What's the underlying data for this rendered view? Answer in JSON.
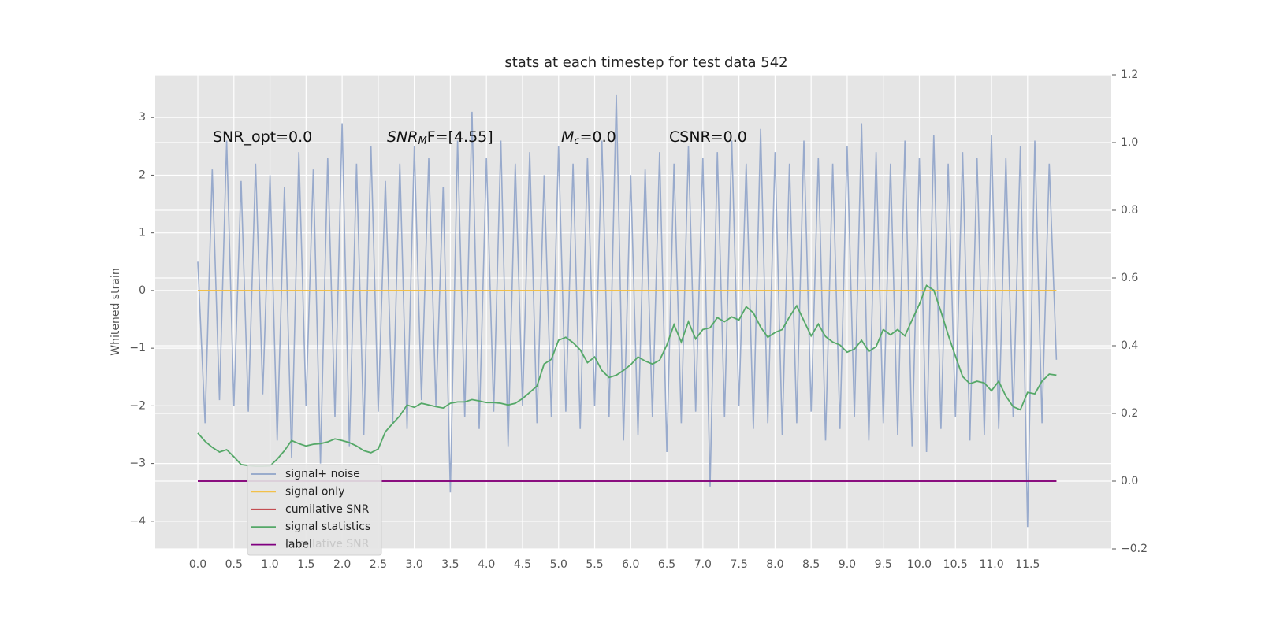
{
  "chart_data": {
    "type": "line",
    "title": "stats at each timestep for test data 542",
    "ylabel": "Whitened strain",
    "annotations": [
      {
        "parts": [
          "SNR_opt=0.0"
        ]
      },
      {
        "parts": [
          "SNR",
          "M",
          "F=[4.55]"
        ]
      },
      {
        "parts": [
          "M",
          "c",
          "=0.0"
        ]
      },
      {
        "parts": [
          "CSNR=0.0"
        ]
      }
    ],
    "legend_ghost_text": "cumilative SNR",
    "xlim": [
      -0.59,
      12.66
    ],
    "ylim": [
      -4.48,
      3.74
    ],
    "y2lim": [
      -0.2,
      1.2
    ],
    "grid": true,
    "legend": "lower left",
    "xticks": [
      {
        "value": 0,
        "label": "0.0"
      },
      0.5,
      {
        "value": 1,
        "label": "1.0"
      },
      1.5,
      {
        "value": 2,
        "label": "2.0"
      },
      2.5,
      {
        "value": 3,
        "label": "3.0"
      },
      3.5,
      {
        "value": 4,
        "label": "4.0"
      },
      4.5,
      {
        "value": 5,
        "label": "5.0"
      },
      5.5,
      {
        "value": 6,
        "label": "6.0"
      },
      6.5,
      {
        "value": 7,
        "label": "7.0"
      },
      7.5,
      {
        "value": 8,
        "label": "8.0"
      },
      8.5,
      {
        "value": 9,
        "label": "9.0"
      },
      9.5,
      {
        "value": 10,
        "label": "10.0"
      },
      10.5,
      {
        "value": 11,
        "label": "11.0"
      },
      11.5
    ],
    "yticks": [
      {
        "value": -4,
        "label": "−4"
      },
      {
        "value": -3,
        "label": "−3"
      },
      {
        "value": -2,
        "label": "−2"
      },
      {
        "value": -1,
        "label": "−1"
      },
      0,
      1,
      2,
      3
    ],
    "y2ticks": [
      {
        "value": -0.2,
        "label": "−0.2"
      },
      {
        "value": 0,
        "label": "0.0"
      },
      0.2,
      0.4,
      0.6,
      0.8,
      {
        "value": 1,
        "label": "1.0"
      },
      1.2
    ],
    "x": [
      0,
      0.1,
      0.2,
      0.3,
      0.4,
      0.5,
      0.6,
      0.7,
      0.8,
      0.9,
      1,
      1.1,
      1.2,
      1.3,
      1.4,
      1.5,
      1.6,
      1.7,
      1.8,
      1.9,
      2,
      2.1,
      2.2,
      2.3,
      2.4,
      2.5,
      2.6,
      2.7,
      2.8,
      2.9,
      3,
      3.1,
      3.2,
      3.3,
      3.4,
      3.5,
      3.6,
      3.7,
      3.8,
      3.9,
      4,
      4.1,
      4.2,
      4.3,
      4.4,
      4.5,
      4.6,
      4.7,
      4.8,
      4.9,
      5,
      5.1,
      5.2,
      5.3,
      5.4,
      5.5,
      5.6,
      5.7,
      5.8,
      5.9,
      6,
      6.1,
      6.2,
      6.3,
      6.4,
      6.5,
      6.6,
      6.7,
      6.8,
      6.9,
      7,
      7.1,
      7.2,
      7.3,
      7.4,
      7.5,
      7.6,
      7.7,
      7.8,
      7.9,
      8,
      8.1,
      8.2,
      8.3,
      8.4,
      8.5,
      8.6,
      8.7,
      8.8,
      8.9,
      9,
      9.1,
      9.2,
      9.3,
      9.4,
      9.5,
      9.6,
      9.7,
      9.8,
      9.9,
      10,
      10.1,
      10.2,
      10.3,
      10.4,
      10.5,
      10.6,
      10.7,
      10.8,
      10.9,
      11,
      11.1,
      11.2,
      11.3,
      11.4,
      11.5,
      11.6,
      11.7,
      11.8,
      11.9
    ],
    "series": [
      {
        "name": "signal+ noise",
        "color": "#8fa3c9",
        "axis": "y",
        "values": [
          0.5,
          -2.3,
          2.1,
          -1.9,
          2.6,
          -2.0,
          1.9,
          -2.1,
          2.2,
          -1.8,
          2.0,
          -2.6,
          1.8,
          -2.9,
          2.4,
          -2.0,
          2.1,
          -3.0,
          2.3,
          -2.2,
          2.9,
          -2.7,
          2.2,
          -2.5,
          2.5,
          -2.1,
          1.9,
          -2.3,
          2.2,
          -2.4,
          2.5,
          -1.9,
          2.3,
          -2.0,
          1.8,
          -3.5,
          2.6,
          -2.2,
          3.1,
          -2.4,
          2.3,
          -2.1,
          2.6,
          -2.7,
          2.2,
          -2.0,
          2.4,
          -2.3,
          2.0,
          -2.2,
          2.5,
          -2.1,
          2.2,
          -2.4,
          2.3,
          -2.0,
          2.6,
          -2.2,
          3.4,
          -2.6,
          2.0,
          -2.5,
          2.1,
          -2.2,
          2.4,
          -2.8,
          2.2,
          -2.3,
          2.5,
          -2.1,
          2.3,
          -3.4,
          2.4,
          -2.2,
          2.6,
          -2.0,
          2.2,
          -2.4,
          2.8,
          -2.3,
          2.4,
          -2.5,
          2.2,
          -2.3,
          2.6,
          -2.1,
          2.3,
          -2.6,
          2.2,
          -2.4,
          2.5,
          -2.2,
          2.9,
          -2.6,
          2.4,
          -2.3,
          2.2,
          -2.5,
          2.6,
          -2.7,
          2.3,
          -2.8,
          2.7,
          -2.4,
          2.2,
          -2.2,
          2.4,
          -2.6,
          2.3,
          -2.5,
          2.7,
          -2.4,
          2.3,
          -2.2,
          2.5,
          -4.1,
          2.6,
          -2.3,
          2.2,
          -1.2
        ]
      },
      {
        "name": "signal only",
        "color": "#f2c04a",
        "axis": "y",
        "x": [
          0,
          11.9
        ],
        "values": [
          0,
          0
        ]
      },
      {
        "name": "cumilative SNR",
        "color": "#c44e52",
        "axis": "y2",
        "x": [
          0,
          11.9
        ],
        "values": [
          0,
          0
        ]
      },
      {
        "name": "signal statistics",
        "color": "#55a868",
        "axis": "y2",
        "values": [
          0.142,
          0.118,
          0.1,
          0.086,
          0.093,
          0.072,
          0.049,
          0.046,
          0.044,
          0.044,
          0.045,
          0.065,
          0.09,
          0.12,
          0.111,
          0.104,
          0.109,
          0.111,
          0.116,
          0.125,
          0.12,
          0.114,
          0.104,
          0.09,
          0.084,
          0.095,
          0.146,
          0.17,
          0.193,
          0.225,
          0.218,
          0.23,
          0.225,
          0.22,
          0.216,
          0.23,
          0.234,
          0.234,
          0.241,
          0.237,
          0.232,
          0.232,
          0.23,
          0.225,
          0.23,
          0.244,
          0.262,
          0.281,
          0.346,
          0.36,
          0.416,
          0.425,
          0.409,
          0.388,
          0.35,
          0.367,
          0.327,
          0.306,
          0.313,
          0.327,
          0.344,
          0.367,
          0.355,
          0.346,
          0.357,
          0.402,
          0.462,
          0.411,
          0.471,
          0.42,
          0.448,
          0.453,
          0.483,
          0.471,
          0.485,
          0.476,
          0.515,
          0.497,
          0.455,
          0.425,
          0.439,
          0.448,
          0.485,
          0.518,
          0.474,
          0.429,
          0.464,
          0.427,
          0.411,
          0.402,
          0.381,
          0.39,
          0.416,
          0.383,
          0.397,
          0.448,
          0.432,
          0.448,
          0.429,
          0.476,
          0.522,
          0.578,
          0.564,
          0.501,
          0.432,
          0.369,
          0.309,
          0.288,
          0.295,
          0.29,
          0.267,
          0.295,
          0.251,
          0.22,
          0.211,
          0.262,
          0.258,
          0.295,
          0.316,
          0.313
        ]
      },
      {
        "name": "label",
        "color": "#800080",
        "axis": "y2",
        "x": [
          0,
          11.9
        ],
        "values": [
          0,
          0
        ]
      }
    ]
  }
}
